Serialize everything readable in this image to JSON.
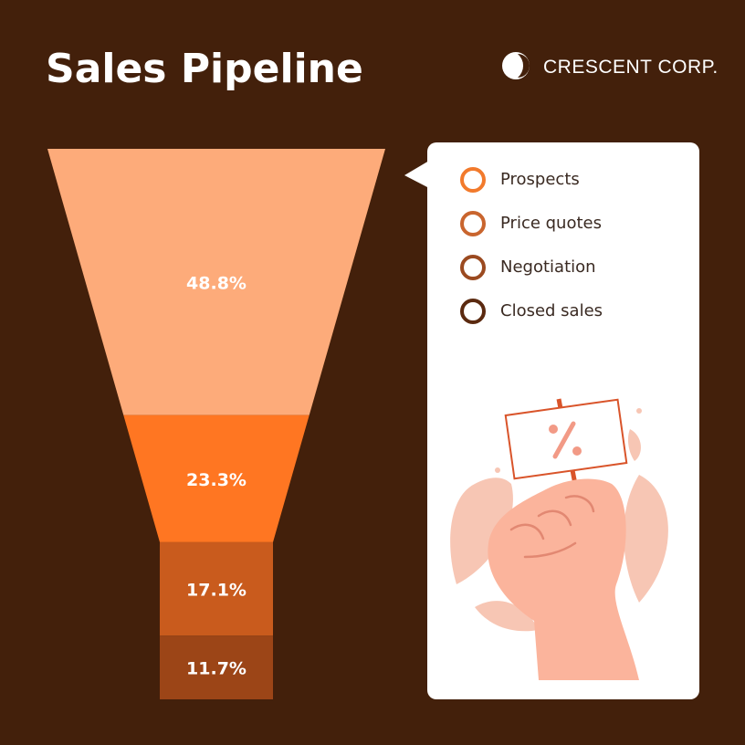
{
  "brand": "CRESCENT CORP.",
  "chart_data": {
    "type": "funnel",
    "title": "Sales Pipeline",
    "categories": [
      "Prospects",
      "Price quotes",
      "Negotiation",
      "Closed sales"
    ],
    "values": [
      48.8,
      23.3,
      17.1,
      11.7
    ],
    "value_labels": [
      "48.8%",
      "23.3%",
      "17.1%",
      "11.7%"
    ],
    "colors": [
      "#fdab7a",
      "#ff7622",
      "#c95b1d",
      "#9c4517"
    ],
    "legend_colors": [
      "#f27a2c",
      "#c9652e",
      "#9b4a20",
      "#5b2a10"
    ]
  }
}
